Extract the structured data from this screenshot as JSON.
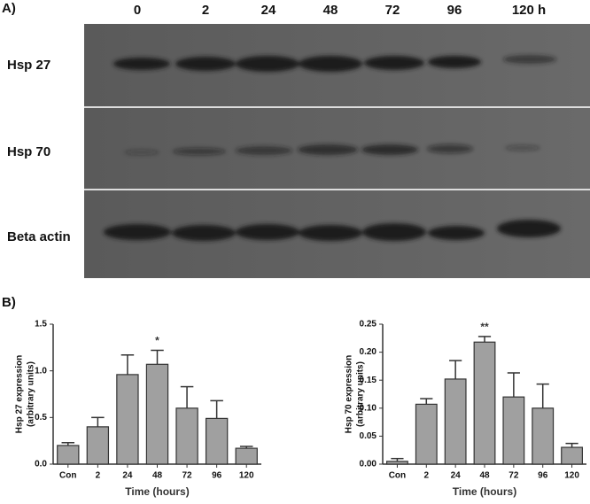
{
  "blot": {
    "panel_label": "A)",
    "lanes": [
      "0",
      "2",
      "24",
      "48",
      "72",
      "96",
      "120 h"
    ],
    "rows": [
      "Hsp 27",
      "Hsp 70",
      "Beta actin"
    ]
  },
  "panel_b_label": "B)",
  "chart_data": [
    {
      "type": "bar",
      "x_label": "Time (hours)",
      "y_label": [
        "Hsp 27 expression",
        "(arbitrary units)"
      ],
      "categories": [
        "Con",
        "2",
        "24",
        "48",
        "72",
        "96",
        "120"
      ],
      "values": [
        0.2,
        0.4,
        0.96,
        1.07,
        0.6,
        0.49,
        0.17
      ],
      "errors": [
        0.03,
        0.1,
        0.21,
        0.15,
        0.23,
        0.19,
        0.02
      ],
      "color": "#a0a0a0",
      "ylim": [
        0,
        1.5
      ],
      "yticks": [
        {
          "value": 0,
          "label": "0.0"
        },
        {
          "value": 0.5,
          "label": "0.5"
        },
        {
          "value": 1,
          "label": "1.0"
        },
        {
          "value": 1.5,
          "label": "1.5"
        }
      ],
      "annotations": [
        {
          "text": "*",
          "x": "48"
        }
      ]
    },
    {
      "type": "bar",
      "x_label": "Time (hours)",
      "y_label": [
        "Hsp 70 expression",
        "(arbitrary units)"
      ],
      "categories": [
        "Con",
        "2",
        "24",
        "48",
        "72",
        "96",
        "120"
      ],
      "values": [
        0.005,
        0.107,
        0.152,
        0.218,
        0.12,
        0.1,
        0.03
      ],
      "errors": [
        0.005,
        0.01,
        0.033,
        0.01,
        0.043,
        0.043,
        0.007
      ],
      "color": "#a0a0a0",
      "ylim": [
        0,
        0.25
      ],
      "yticks": [
        {
          "value": 0,
          "label": "0.00"
        },
        {
          "value": 0.05,
          "label": "0.05"
        },
        {
          "value": 0.1,
          "label": "0.10"
        },
        {
          "value": 0.15,
          "label": "0.15"
        },
        {
          "value": 0.2,
          "label": "0.20"
        },
        {
          "value": 0.25,
          "label": "0.25"
        }
      ],
      "annotations": [
        {
          "text": "**",
          "x": "48"
        }
      ]
    }
  ]
}
